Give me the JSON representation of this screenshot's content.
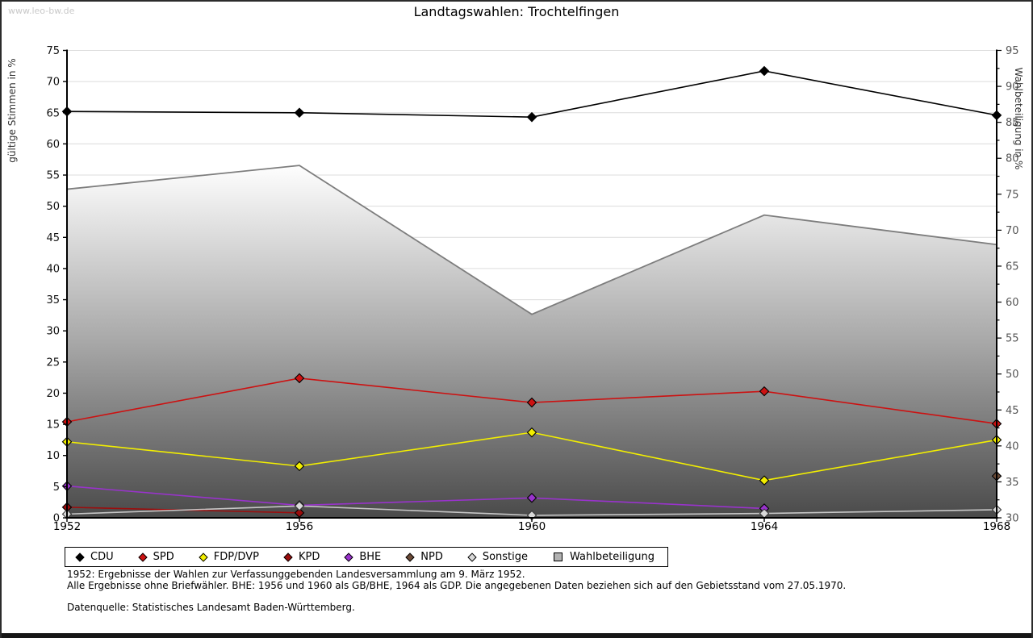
{
  "watermark": "www.leo-bw.de",
  "title": "Landtagswahlen: Trochtelfingen",
  "chart_data": {
    "type": "line",
    "x": [
      1952,
      1956,
      1960,
      1964,
      1968
    ],
    "left_axis": {
      "label": "gültige Stimmen in %",
      "min": 0,
      "max": 75,
      "tick_step": 5
    },
    "right_axis": {
      "label": "Wahlbeteiligung in %",
      "min": 30,
      "max": 95,
      "tick_step": 5,
      "minor_tick_step": 2.5
    },
    "grid": "horizontal gridlines every 5 (left axis)",
    "legend_position": "bottom",
    "series": [
      {
        "name": "Wahlbeteiligung",
        "axis": "right",
        "style": "area",
        "color": "#9c9c9c",
        "values": [
          75.7,
          79.0,
          58.3,
          72.1,
          68.0
        ]
      },
      {
        "name": "CDU",
        "axis": "left",
        "style": "line",
        "color": "#000000",
        "values": [
          65.2,
          65.0,
          64.3,
          71.7,
          64.6
        ]
      },
      {
        "name": "SPD",
        "axis": "left",
        "style": "line",
        "color": "#cc1212",
        "values": [
          15.4,
          22.4,
          18.5,
          20.3,
          15.1
        ]
      },
      {
        "name": "FDP/DVP",
        "axis": "left",
        "style": "line",
        "color": "#f2ee00",
        "values": [
          12.2,
          8.3,
          13.7,
          6.0,
          12.5
        ]
      },
      {
        "name": "KPD",
        "axis": "left",
        "style": "line",
        "color": "#9b0d0d",
        "values": [
          1.7,
          0.8,
          null,
          null,
          null
        ]
      },
      {
        "name": "BHE",
        "axis": "left",
        "style": "line",
        "color": "#9933cc",
        "values": [
          5.1,
          2.0,
          3.2,
          1.5,
          null
        ]
      },
      {
        "name": "NPD",
        "axis": "left",
        "style": "line",
        "color": "#6b4a37",
        "values": [
          null,
          null,
          null,
          null,
          6.7
        ]
      },
      {
        "name": "Sonstige",
        "axis": "left",
        "style": "line",
        "color": "#c6c6c6",
        "marker_fill": "#d9d9d9",
        "values": [
          0.6,
          1.9,
          0.4,
          0.7,
          1.3
        ]
      }
    ]
  },
  "legend": {
    "items": [
      {
        "label": "CDU",
        "shape": "diamond",
        "color": "#000000"
      },
      {
        "label": "SPD",
        "shape": "diamond",
        "color": "#cc1212"
      },
      {
        "label": "FDP/DVP",
        "shape": "diamond",
        "color": "#f2ee00"
      },
      {
        "label": "KPD",
        "shape": "diamond",
        "color": "#9b0d0d"
      },
      {
        "label": "BHE",
        "shape": "diamond",
        "color": "#9933cc"
      },
      {
        "label": "NPD",
        "shape": "diamond",
        "color": "#6b4a37"
      },
      {
        "label": "Sonstige",
        "shape": "diamond",
        "color": "#d9d9d9"
      },
      {
        "label": "Wahlbeteiligung",
        "shape": "square",
        "color": "#b2b2b2"
      }
    ]
  },
  "footer": {
    "line1": "1952: Ergebnisse der Wahlen zur Verfassunggebenden Landesversammlung am 9. März 1952.",
    "line2": "Alle Ergebnisse ohne Briefwähler. BHE: 1956 und 1960 als GB/BHE, 1964 als GDP. Die angegebenen Daten beziehen sich auf den Gebietsstand vom 27.05.1970.",
    "line3": "Datenquelle: Statistisches Landesamt Baden-Württemberg."
  }
}
